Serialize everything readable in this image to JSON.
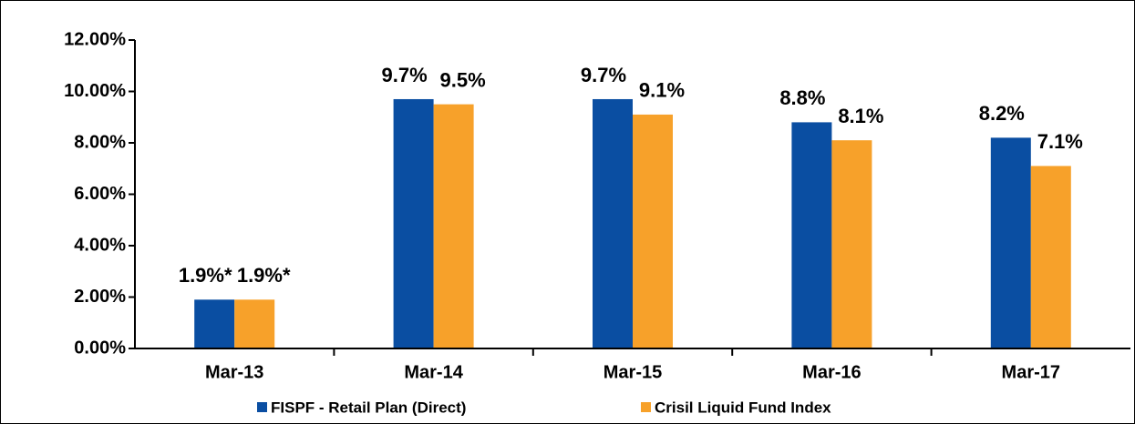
{
  "chart_data": {
    "type": "bar",
    "categories": [
      "Mar-13",
      "Mar-14",
      "Mar-15",
      "Mar-16",
      "Mar-17"
    ],
    "series": [
      {
        "name": "FISPF - Retail Plan (Direct)",
        "color": "#0a4ea2",
        "values": [
          1.9,
          9.7,
          9.7,
          8.8,
          8.2
        ],
        "value_labels": [
          "1.9%*",
          "9.7%",
          "9.7%",
          "8.8%",
          "8.2%"
        ]
      },
      {
        "name": "Crisil Liquid Fund Index",
        "color": "#f7a12a",
        "values": [
          1.9,
          9.5,
          9.1,
          8.1,
          7.1
        ],
        "value_labels": [
          "1.9%*",
          "9.5%",
          "9.1%",
          "8.1%",
          "7.1%"
        ]
      }
    ],
    "ylim": [
      0,
      12
    ],
    "yticks": [
      {
        "value": 0,
        "label": "0.00%"
      },
      {
        "value": 2,
        "label": "2.00%"
      },
      {
        "value": 4,
        "label": "4.00%"
      },
      {
        "value": 6,
        "label": "6.00%"
      },
      {
        "value": 8,
        "label": "8.00%"
      },
      {
        "value": 10,
        "label": "10.00%"
      },
      {
        "value": 12,
        "label": "12.00%"
      }
    ],
    "legend": "bottom"
  }
}
